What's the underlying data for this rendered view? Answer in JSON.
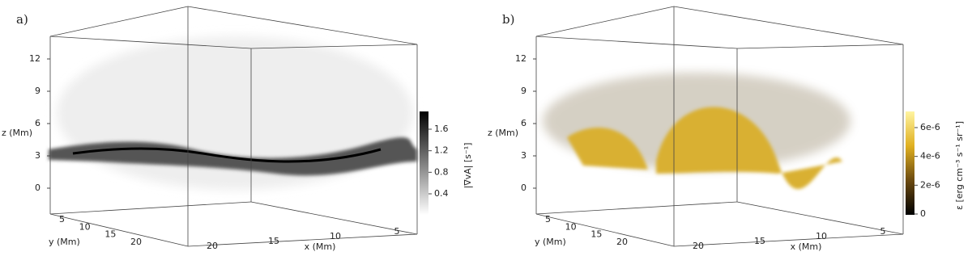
{
  "panels": [
    {
      "label": "a)",
      "z_label": "z (Mm)",
      "y_label": "y (Mm)",
      "x_label": "x (Mm)",
      "zticks": [
        0,
        3,
        6,
        9,
        12
      ],
      "yticks": [
        5,
        10,
        15,
        20
      ],
      "xticks": [
        20,
        15,
        10,
        5
      ],
      "colorbar": {
        "label": "|∇vA| [s⁻¹]",
        "ticks": [
          0.4,
          0.8,
          1.2,
          1.6
        ],
        "colors": [
          "#ffffff",
          "#000000"
        ]
      }
    },
    {
      "label": "b)",
      "z_label": "z (Mm)",
      "y_label": "y (Mm)",
      "x_label": "x (Mm)",
      "zticks": [
        0,
        3,
        6,
        9,
        12
      ],
      "yticks": [
        5,
        10,
        15,
        20
      ],
      "xticks": [
        20,
        15,
        10,
        5
      ],
      "colorbar": {
        "label": "ε [erg cm⁻³ s⁻¹ sr⁻¹]",
        "ticks": [
          0,
          {
            "value": 2e-06,
            "label": "2e-6"
          },
          {
            "value": 4e-06,
            "label": "4e-6"
          },
          {
            "value": 6e-06,
            "label": "6e-6"
          }
        ],
        "colors": [
          "#000000",
          "#6b4a10",
          "#e0b020",
          "#fff4a0"
        ]
      }
    }
  ]
}
